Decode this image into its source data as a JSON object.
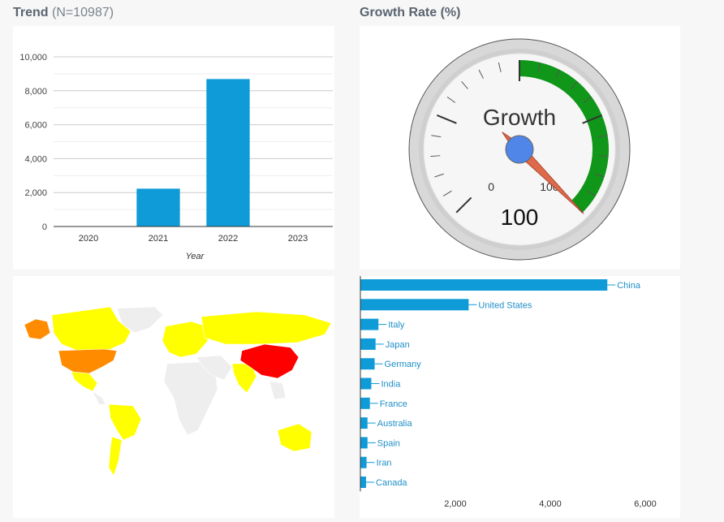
{
  "trend": {
    "title": "Trend",
    "subtitle": "(N=10987)"
  },
  "growth": {
    "title": "Growth Rate (%)"
  },
  "chart_data": [
    {
      "type": "bar",
      "categories": [
        "2020",
        "2021",
        "2022",
        "2023"
      ],
      "values": [
        0,
        2230,
        8690,
        0
      ],
      "xlabel": "Year",
      "ylabel": "",
      "ylim": [
        0,
        10000
      ],
      "yticks": [
        0,
        2000,
        4000,
        6000,
        8000,
        10000
      ],
      "ytick_labels": [
        "0",
        "2,000",
        "4,000",
        "6,000",
        "8,000",
        "10,000"
      ],
      "grid": true,
      "color": "#0e9bd8"
    },
    {
      "type": "gauge",
      "label": "Growth",
      "value": 100,
      "value_label": "100",
      "min": 0,
      "max": 100,
      "min_label": "0",
      "max_label": "100",
      "green_from": 0,
      "green_to": 100,
      "green_color": "#109618"
    },
    {
      "type": "bar",
      "orientation": "horizontal",
      "categories": [
        "China",
        "United States",
        "Italy",
        "Japan",
        "Germany",
        "India",
        "France",
        "Australia",
        "Spain",
        "Iran",
        "Canada"
      ],
      "values": [
        5200,
        2280,
        380,
        320,
        300,
        230,
        200,
        150,
        150,
        130,
        120
      ],
      "xlim": [
        0,
        6700
      ],
      "xticks": [
        2000,
        4000,
        6000
      ],
      "xtick_labels": [
        "2,000",
        "4,000",
        "6,000"
      ],
      "color": "#0e9bd8"
    },
    {
      "type": "map",
      "countries": [
        {
          "name": "China",
          "level": "high",
          "color": "#ff0000"
        },
        {
          "name": "United States",
          "level": "medium",
          "color": "#ff8c00"
        },
        {
          "name": "Alaska",
          "level": "medium",
          "color": "#ff8c00"
        },
        {
          "name": "Canada",
          "level": "low",
          "color": "#ffff00"
        },
        {
          "name": "Greenland",
          "level": "none",
          "color": "#eeeeee"
        },
        {
          "name": "Mexico",
          "level": "low",
          "color": "#ffff00"
        },
        {
          "name": "Brazil",
          "level": "low",
          "color": "#ffff00"
        },
        {
          "name": "Argentina",
          "level": "low",
          "color": "#ffff00"
        },
        {
          "name": "Europe",
          "level": "low",
          "color": "#ffff00"
        },
        {
          "name": "Russia",
          "level": "low",
          "color": "#ffff00"
        },
        {
          "name": "India",
          "level": "low",
          "color": "#ffff00"
        },
        {
          "name": "Australia",
          "level": "low",
          "color": "#ffff00"
        },
        {
          "name": "Africa",
          "level": "none",
          "color": "#eeeeee"
        }
      ]
    }
  ]
}
